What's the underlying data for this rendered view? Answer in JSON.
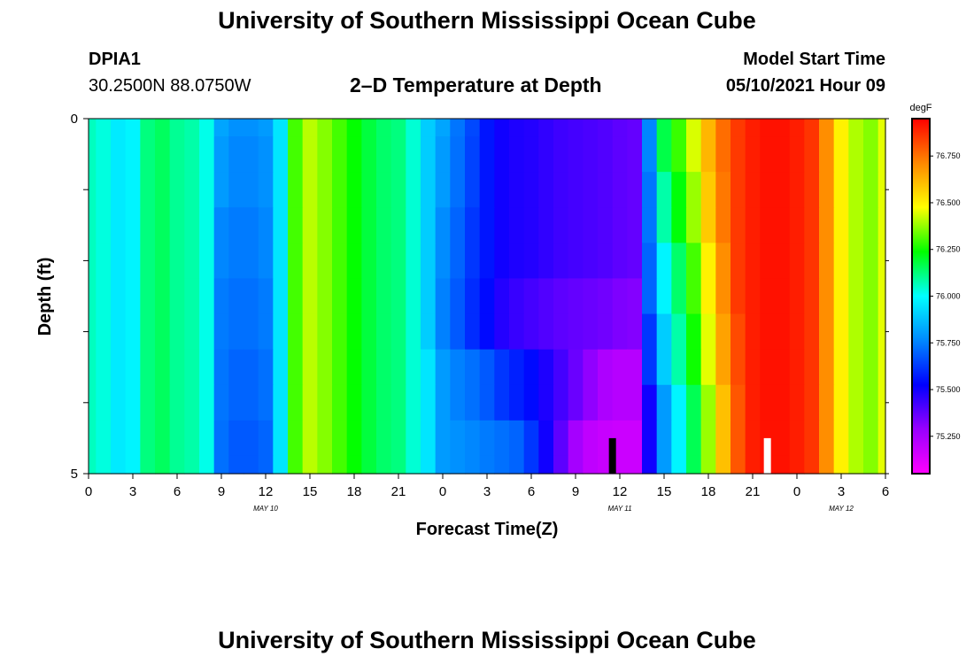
{
  "page": {
    "main_title": "University of Southern Mississippi Ocean Cube",
    "footer_title": "University of Southern Mississippi Ocean Cube",
    "station_id": "DPIA1",
    "station_coords": "30.2500N  88.0750W",
    "chart_title": "2–D Temperature at Depth",
    "model_start_label": "Model Start Time",
    "model_start_value": "05/10/2021 Hour 09"
  },
  "colors": {
    "scale": [
      "#ff00ff",
      "#9900ff",
      "#0000ff",
      "#0088ff",
      "#00ffff",
      "#00ff00",
      "#ffff00",
      "#ff8800",
      "#ff0000"
    ],
    "marker_dark": "#000000",
    "marker_light": "#ffffff"
  },
  "chart_data": {
    "type": "heatmap",
    "title": "2–D Temperature at Depth",
    "xlabel": "Forecast Time(Z)",
    "ylabel": "Depth (ft)",
    "x_hours": [
      0,
      1,
      2,
      3,
      4,
      5,
      6,
      7,
      8,
      9,
      10,
      11,
      12,
      13,
      14,
      15,
      16,
      17,
      18,
      19,
      20,
      21,
      22,
      23,
      24,
      25,
      26,
      27,
      28,
      29,
      30,
      31,
      32,
      33,
      34,
      35,
      36,
      37,
      38,
      39,
      40,
      41,
      42,
      43,
      44,
      45,
      46,
      47,
      48,
      49,
      50,
      51,
      52,
      53,
      54
    ],
    "x_tick_hours": [
      0,
      3,
      6,
      9,
      12,
      15,
      18,
      21,
      24,
      27,
      30,
      33,
      36,
      39,
      42,
      45,
      48,
      51,
      54
    ],
    "x_tick_labels": [
      "0",
      "3",
      "6",
      "9",
      "12",
      "15",
      "18",
      "21",
      "0",
      "3",
      "6",
      "9",
      "12",
      "15",
      "18",
      "21",
      "0",
      "3",
      "6"
    ],
    "date_labels": [
      {
        "hour": 12,
        "text": "MAY  10"
      },
      {
        "hour": 36,
        "text": "MAY  11"
      },
      {
        "hour": 51,
        "text": "MAY  12"
      }
    ],
    "depths_ft": [
      0,
      0.5,
      1,
      1.5,
      2,
      2.5,
      3,
      3.5,
      4,
      4.5,
      5
    ],
    "y_tick_labels": [
      {
        "depth": 0,
        "text": "0"
      },
      {
        "depth": 5,
        "text": "5"
      }
    ],
    "ylim": [
      0,
      5
    ],
    "temperature_degF": [
      [
        76.06,
        76.03,
        75.96,
        75.98,
        76.12,
        76.15,
        76.1,
        76.08,
        76.02,
        75.82,
        75.78,
        75.78,
        75.8,
        75.95,
        76.3,
        76.41,
        76.36,
        76.3,
        76.24,
        76.18,
        76.14,
        76.12,
        76.04,
        75.9,
        75.82,
        75.73,
        75.65,
        75.56,
        75.5,
        75.48,
        75.47,
        75.45,
        75.43,
        75.42,
        75.41,
        75.4,
        75.38,
        75.37,
        75.76,
        76.17,
        76.29,
        76.44,
        76.62,
        76.76,
        76.85,
        76.9,
        76.92,
        76.92,
        76.9,
        76.86,
        76.7,
        76.5,
        76.4,
        76.36,
        76.45
      ],
      [
        76.06,
        76.03,
        75.96,
        75.98,
        76.12,
        76.15,
        76.1,
        76.08,
        76.02,
        75.8,
        75.76,
        75.76,
        75.78,
        75.95,
        76.3,
        76.41,
        76.36,
        76.3,
        76.24,
        76.18,
        76.14,
        76.12,
        76.04,
        75.9,
        75.8,
        75.72,
        75.64,
        75.56,
        75.5,
        75.48,
        75.47,
        75.45,
        75.43,
        75.42,
        75.41,
        75.4,
        75.38,
        75.37,
        75.76,
        76.17,
        76.29,
        76.44,
        76.62,
        76.76,
        76.85,
        76.9,
        76.92,
        76.92,
        76.9,
        76.86,
        76.7,
        76.5,
        76.4,
        76.36,
        76.45
      ],
      [
        76.06,
        76.03,
        75.96,
        75.98,
        76.12,
        76.15,
        76.1,
        76.08,
        76.02,
        75.8,
        75.76,
        75.76,
        75.78,
        75.95,
        76.3,
        76.41,
        76.36,
        76.3,
        76.24,
        76.18,
        76.14,
        76.12,
        76.04,
        75.9,
        75.8,
        75.72,
        75.64,
        75.56,
        75.5,
        75.48,
        75.47,
        75.45,
        75.43,
        75.42,
        75.41,
        75.4,
        75.38,
        75.37,
        75.73,
        76.08,
        76.23,
        76.38,
        76.58,
        76.74,
        76.85,
        76.9,
        76.92,
        76.92,
        76.9,
        76.86,
        76.7,
        76.5,
        76.4,
        76.36,
        76.45
      ],
      [
        76.06,
        76.03,
        75.96,
        75.98,
        76.12,
        76.15,
        76.1,
        76.08,
        76.02,
        75.76,
        75.74,
        75.74,
        75.76,
        75.95,
        76.3,
        76.41,
        76.36,
        76.3,
        76.24,
        76.18,
        76.14,
        76.12,
        76.04,
        75.9,
        75.77,
        75.7,
        75.62,
        75.56,
        75.5,
        75.48,
        75.47,
        75.45,
        75.43,
        75.42,
        75.41,
        75.4,
        75.38,
        75.37,
        75.73,
        76.08,
        76.23,
        76.38,
        76.58,
        76.74,
        76.85,
        76.9,
        76.92,
        76.92,
        76.9,
        76.86,
        76.7,
        76.5,
        76.4,
        76.36,
        76.45
      ],
      [
        76.06,
        76.03,
        75.96,
        75.98,
        76.12,
        76.15,
        76.1,
        76.08,
        76.02,
        75.76,
        75.74,
        75.74,
        75.76,
        75.95,
        76.3,
        76.41,
        76.36,
        76.3,
        76.24,
        76.18,
        76.14,
        76.12,
        76.04,
        75.9,
        75.77,
        75.7,
        75.62,
        75.56,
        75.5,
        75.48,
        75.47,
        75.45,
        75.43,
        75.42,
        75.41,
        75.4,
        75.38,
        75.37,
        75.7,
        75.98,
        76.14,
        76.3,
        76.5,
        76.7,
        76.85,
        76.9,
        76.92,
        76.92,
        76.9,
        76.86,
        76.7,
        76.5,
        76.4,
        76.36,
        76.45
      ],
      [
        76.06,
        76.03,
        75.96,
        75.98,
        76.12,
        76.15,
        76.1,
        76.08,
        76.02,
        75.74,
        75.72,
        75.72,
        75.74,
        75.95,
        76.3,
        76.41,
        76.36,
        76.3,
        76.24,
        76.18,
        76.14,
        76.12,
        76.04,
        75.9,
        75.75,
        75.68,
        75.6,
        75.54,
        75.47,
        75.44,
        75.42,
        75.4,
        75.38,
        75.37,
        75.36,
        75.35,
        75.33,
        75.32,
        75.7,
        75.98,
        76.14,
        76.3,
        76.5,
        76.7,
        76.85,
        76.9,
        76.92,
        76.92,
        76.9,
        76.86,
        76.7,
        76.5,
        76.4,
        76.36,
        76.45
      ],
      [
        76.06,
        76.03,
        75.96,
        75.98,
        76.12,
        76.15,
        76.1,
        76.08,
        76.02,
        75.74,
        75.72,
        75.72,
        75.74,
        75.95,
        76.3,
        76.41,
        76.36,
        76.3,
        76.24,
        76.18,
        76.14,
        76.12,
        76.04,
        75.9,
        75.75,
        75.68,
        75.6,
        75.54,
        75.47,
        75.44,
        75.42,
        75.4,
        75.38,
        75.37,
        75.36,
        75.35,
        75.33,
        75.32,
        75.62,
        75.9,
        76.08,
        76.25,
        76.45,
        76.66,
        76.82,
        76.9,
        76.92,
        76.92,
        76.9,
        76.86,
        76.7,
        76.5,
        76.4,
        76.36,
        76.45
      ],
      [
        76.06,
        76.03,
        75.96,
        75.98,
        76.12,
        76.15,
        76.1,
        76.08,
        76.02,
        75.73,
        75.7,
        75.7,
        75.72,
        75.95,
        76.3,
        76.41,
        76.36,
        76.3,
        76.24,
        76.18,
        76.14,
        76.12,
        76.04,
        75.95,
        75.8,
        75.75,
        75.72,
        75.68,
        75.62,
        75.58,
        75.54,
        75.48,
        75.42,
        75.36,
        75.3,
        75.24,
        75.22,
        75.22,
        75.62,
        75.9,
        76.08,
        76.25,
        76.45,
        76.66,
        76.82,
        76.9,
        76.92,
        76.92,
        76.9,
        76.86,
        76.7,
        76.5,
        76.4,
        76.36,
        76.45
      ],
      [
        76.06,
        76.03,
        75.96,
        75.98,
        76.12,
        76.15,
        76.1,
        76.08,
        76.02,
        75.73,
        75.7,
        75.7,
        75.72,
        75.95,
        76.3,
        76.41,
        76.36,
        76.3,
        76.24,
        76.18,
        76.14,
        76.12,
        76.04,
        75.95,
        75.8,
        75.75,
        75.72,
        75.68,
        75.62,
        75.58,
        75.54,
        75.48,
        75.42,
        75.36,
        75.3,
        75.24,
        75.22,
        75.22,
        75.5,
        75.8,
        75.98,
        76.16,
        76.38,
        76.6,
        76.8,
        76.9,
        76.92,
        76.92,
        76.9,
        76.86,
        76.7,
        76.5,
        76.4,
        76.36,
        76.45
      ],
      [
        76.06,
        76.03,
        75.96,
        75.98,
        76.12,
        76.15,
        76.1,
        76.08,
        76.02,
        75.72,
        75.68,
        75.68,
        75.7,
        75.95,
        76.3,
        76.41,
        76.36,
        76.3,
        76.24,
        76.18,
        76.14,
        76.12,
        76.04,
        75.95,
        75.8,
        75.78,
        75.76,
        75.74,
        75.72,
        75.7,
        75.62,
        75.5,
        75.38,
        75.26,
        75.2,
        75.18,
        75.17,
        75.17,
        75.5,
        75.8,
        75.98,
        76.16,
        76.38,
        76.6,
        76.8,
        76.9,
        76.92,
        76.92,
        76.9,
        76.86,
        76.7,
        76.5,
        76.4,
        76.36,
        76.45
      ],
      [
        76.06,
        76.03,
        75.96,
        75.98,
        76.12,
        76.15,
        76.1,
        76.08,
        76.02,
        75.72,
        75.68,
        75.68,
        75.7,
        75.95,
        76.3,
        76.41,
        76.36,
        76.3,
        76.24,
        76.18,
        76.14,
        76.12,
        76.04,
        75.95,
        75.8,
        75.78,
        75.76,
        75.74,
        75.72,
        75.7,
        75.62,
        75.5,
        75.38,
        75.26,
        75.2,
        75.18,
        75.17,
        75.17,
        75.5,
        75.8,
        75.98,
        76.16,
        76.38,
        76.6,
        76.8,
        76.9,
        76.92,
        76.92,
        76.9,
        76.86,
        76.7,
        76.5,
        76.4,
        76.36,
        76.45
      ]
    ],
    "value_range": [
      75.05,
      76.95
    ],
    "colorbar": {
      "unit": "degF",
      "ticks": [
        75.25,
        75.5,
        75.75,
        76.0,
        76.25,
        76.5,
        76.75
      ],
      "tick_labels": [
        "75.250",
        "75.500",
        "75.750",
        "76.000",
        "76.250",
        "76.500",
        "76.750"
      ]
    },
    "markers": [
      {
        "hour": 35.5,
        "depth_from": 4.5,
        "color": "dark"
      },
      {
        "hour": 46.0,
        "depth_from": 4.5,
        "color": "light"
      }
    ]
  }
}
